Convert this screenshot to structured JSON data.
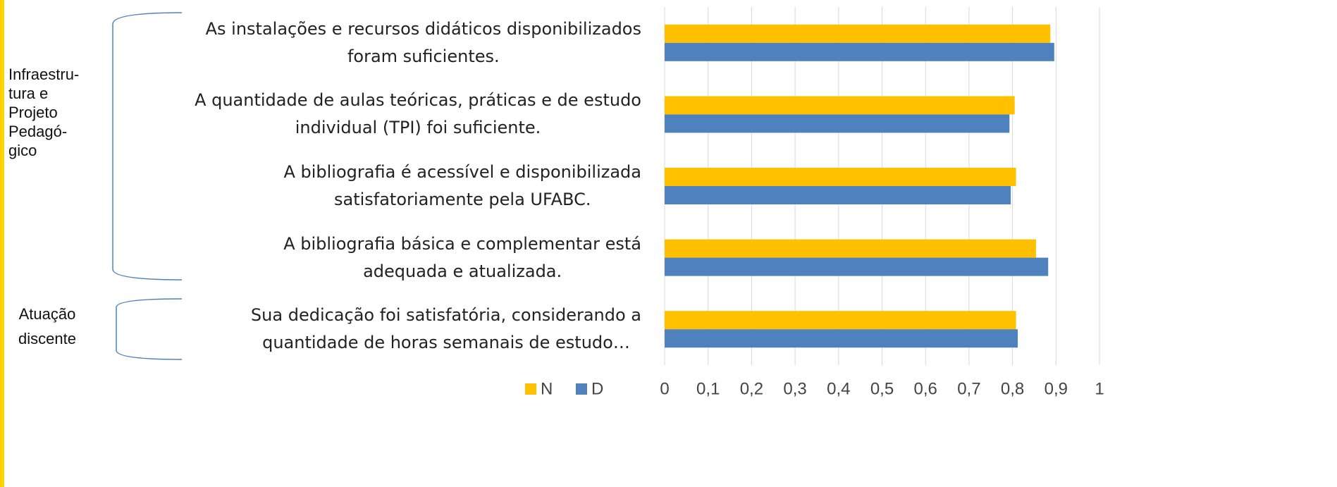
{
  "chart_data": {
    "type": "barh",
    "categories": [
      "As instalações e recursos didáticos disponibilizados\nforam suficientes.",
      "A quantidade de aulas teóricas, práticas e de estudo\nindividual (TPI) foi suficiente.",
      "A bibliografia é acessível e disponibilizada\nsatisfatoriamente pela UFABC.",
      "A bibliografia básica e complementar está\nadequada e atualizada.",
      "Sua dedicação foi satisfatória, considerando a\nquantidade de horas semanais de estudo…"
    ],
    "groups": [
      {
        "label": "Infraestru-\ntura e\nProjeto\nPedagó-\ngico"
      },
      {
        "label": "Atuação\ndiscente"
      }
    ],
    "series": [
      {
        "name": "N",
        "color": "#FFC000",
        "values": [
          0.887,
          0.805,
          0.808,
          0.854,
          0.808
        ]
      },
      {
        "name": "D",
        "color": "#4F81BD",
        "values": [
          0.896,
          0.793,
          0.796,
          0.882,
          0.812
        ]
      }
    ],
    "xlim": [
      0,
      1
    ],
    "xticks": [
      0,
      {
        "value": 0.1,
        "label": "0,1"
      },
      {
        "value": 0.2,
        "label": "0,2"
      },
      {
        "value": 0.3,
        "label": "0,3"
      },
      {
        "value": 0.4,
        "label": "0,4"
      },
      {
        "value": 0.5,
        "label": "0,5"
      },
      {
        "value": 0.6,
        "label": "0,6"
      },
      {
        "value": 0.7,
        "label": "0,7"
      },
      {
        "value": 0.8,
        "label": "0,8"
      },
      {
        "value": 0.9,
        "label": "0,9"
      },
      1
    ],
    "grid": true
  }
}
